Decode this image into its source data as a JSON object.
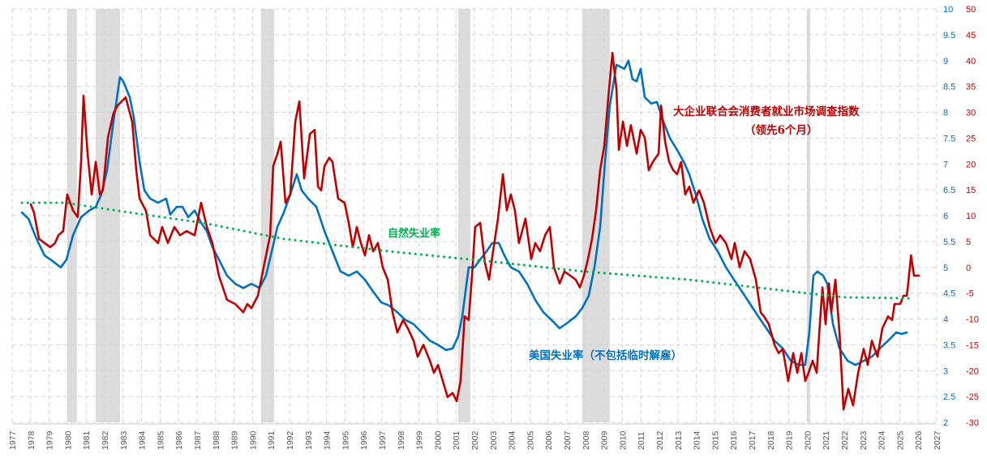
{
  "chart_data": {
    "type": "line",
    "title": "",
    "x_axis": {
      "range": [
        1977,
        2027
      ],
      "ticks": [
        1977,
        1978,
        1979,
        1980,
        1981,
        1982,
        1983,
        1984,
        1985,
        1986,
        1987,
        1988,
        1989,
        1990,
        1991,
        1992,
        1993,
        1994,
        1995,
        1996,
        1997,
        1998,
        1999,
        2000,
        2001,
        2002,
        2003,
        2004,
        2005,
        2006,
        2007,
        2008,
        2009,
        2010,
        2011,
        2012,
        2013,
        2014,
        2015,
        2016,
        2017,
        2018,
        2019,
        2020,
        2021,
        2022,
        2023,
        2024,
        2025,
        2026,
        2027
      ]
    },
    "y_left": {
      "range": [
        2,
        10
      ],
      "ticks": [
        "2",
        "2.5",
        "3",
        "3.5",
        "4",
        "4.5",
        "5",
        "5.5",
        "6",
        "6.5",
        "7",
        "7.5",
        "8",
        "8.5",
        "9",
        "9.5",
        "10"
      ],
      "color": "#0070c0"
    },
    "y_right": {
      "range": [
        -30,
        50
      ],
      "ticks": [
        "-30",
        "-25",
        "-20",
        "-15",
        "-10",
        "-5",
        "0",
        "5",
        "10",
        "15",
        "20",
        "25",
        "30",
        "35",
        "40",
        "45",
        "50"
      ],
      "color": "#c00000"
    },
    "grid": true,
    "recessions": [
      [
        1979.98,
        1980.5
      ],
      [
        1981.52,
        1982.83
      ],
      [
        1990.46,
        1991.17
      ],
      [
        2001.12,
        2001.78
      ],
      [
        2007.83,
        2009.32
      ],
      [
        2019.98,
        2020.16
      ]
    ],
    "annotations": {
      "natural_rate": "自然失业率",
      "unemployment": "美国失业率（不包括临时解雇）",
      "conference_board_line1": "大企业联合会消费者就业市场调查指数",
      "conference_board_line2": "（领先6个月）"
    },
    "series": [
      {
        "key": "unemployment",
        "axis": "left",
        "color": "#0070c0",
        "x": [
          1977.53,
          1977.88,
          1978.32,
          1978.75,
          1979.19,
          1979.63,
          1979.94,
          1980.29,
          1980.73,
          1981.17,
          1981.52,
          1981.82,
          1982.13,
          1982.48,
          1982.83,
          1983.01,
          1983.36,
          1983.58,
          1983.89,
          1984.15,
          1984.46,
          1984.89,
          1985.33,
          1985.55,
          1985.9,
          1986.21,
          1986.52,
          1986.87,
          1987.22,
          1987.53,
          1987.83,
          1988.18,
          1988.62,
          1989.06,
          1989.5,
          1989.94,
          1990.38,
          1990.73,
          1991.04,
          1991.34,
          1991.69,
          1992.04,
          1992.39,
          1992.66,
          1993.01,
          1993.45,
          1993.89,
          1994.32,
          1994.76,
          1995.2,
          1995.64,
          1996.08,
          1996.52,
          1996.96,
          1997.39,
          1997.83,
          1998.27,
          1998.71,
          1999.15,
          1999.59,
          2000.03,
          2000.46,
          2000.82,
          2001.12,
          2001.34,
          2001.69,
          2002.0,
          2002.31,
          2002.66,
          2002.96,
          2003.32,
          2003.62,
          2003.97,
          2004.41,
          2004.85,
          2005.29,
          2005.73,
          2006.17,
          2006.61,
          2007.04,
          2007.48,
          2007.83,
          2008.18,
          2008.49,
          2008.8,
          2009.06,
          2009.32,
          2009.68,
          2010.11,
          2010.33,
          2010.55,
          2010.77,
          2010.99,
          2011.21,
          2011.56,
          2011.87,
          2012.22,
          2012.57,
          2012.96,
          2013.32,
          2013.62,
          2013.97,
          2014.32,
          2014.72,
          2015.16,
          2015.6,
          2016.04,
          2016.47,
          2016.91,
          2017.35,
          2017.79,
          2018.23,
          2018.67,
          2019.11,
          2019.54,
          2019.89,
          2020.11,
          2020.33,
          2020.55,
          2020.86,
          2021.08,
          2021.39,
          2021.74,
          2022.18,
          2022.61,
          2023.05,
          2023.49,
          2023.93,
          2024.37,
          2024.81,
          2025.11,
          2025.38
        ],
        "y": [
          6.06,
          5.94,
          5.55,
          5.23,
          5.12,
          5.0,
          5.15,
          5.62,
          5.97,
          6.1,
          6.17,
          6.41,
          6.88,
          7.82,
          8.68,
          8.6,
          8.29,
          7.9,
          7.04,
          6.49,
          6.33,
          6.25,
          6.33,
          6.02,
          6.17,
          6.17,
          5.97,
          6.1,
          5.86,
          5.7,
          5.39,
          5.15,
          4.84,
          4.68,
          4.6,
          4.68,
          4.6,
          4.84,
          5.31,
          5.78,
          6.06,
          6.41,
          6.8,
          6.49,
          6.33,
          6.17,
          5.7,
          5.31,
          4.92,
          4.84,
          4.92,
          4.76,
          4.53,
          4.32,
          4.26,
          4.13,
          3.98,
          3.9,
          3.74,
          3.58,
          3.5,
          3.4,
          3.43,
          3.66,
          4.05,
          5.0,
          5.0,
          5.15,
          5.31,
          5.47,
          5.47,
          5.23,
          5.0,
          4.92,
          4.68,
          4.37,
          4.13,
          3.98,
          3.82,
          3.93,
          4.05,
          4.21,
          4.45,
          5.0,
          5.78,
          7.04,
          8.13,
          8.92,
          8.84,
          9.0,
          8.64,
          8.6,
          8.84,
          8.29,
          8.17,
          8.2,
          7.82,
          7.5,
          7.27,
          7.04,
          6.8,
          6.41,
          5.94,
          5.55,
          5.31,
          5.0,
          4.76,
          4.53,
          4.29,
          4.05,
          3.82,
          3.58,
          3.43,
          3.19,
          3.11,
          3.11,
          3.74,
          4.84,
          4.92,
          4.84,
          4.68,
          3.9,
          3.43,
          3.19,
          3.11,
          3.19,
          3.27,
          3.43,
          3.58,
          3.74,
          3.71,
          3.74
        ]
      },
      {
        "key": "conference_board",
        "axis": "right",
        "color": "#c00000",
        "x": [
          1978.01,
          1978.18,
          1978.45,
          1978.75,
          1979.06,
          1979.32,
          1979.5,
          1979.76,
          1979.98,
          1980.29,
          1980.55,
          1980.73,
          1980.86,
          1981.08,
          1981.3,
          1981.52,
          1981.74,
          1981.91,
          1982.18,
          1982.48,
          1982.7,
          1982.92,
          1983.14,
          1983.49,
          1983.71,
          1983.89,
          1984.24,
          1984.46,
          1984.89,
          1985.11,
          1985.42,
          1985.77,
          1986.08,
          1986.43,
          1986.87,
          1987.22,
          1987.53,
          1987.83,
          1988.18,
          1988.62,
          1989.06,
          1989.5,
          1989.72,
          1989.94,
          1990.29,
          1990.6,
          1990.95,
          1991.12,
          1991.34,
          1991.52,
          1991.78,
          1992.04,
          1992.31,
          1992.53,
          1992.79,
          1993.1,
          1993.36,
          1993.54,
          1993.71,
          1993.89,
          1994.15,
          1994.32,
          1994.63,
          1994.98,
          1995.2,
          1995.42,
          1995.64,
          1995.86,
          1996.08,
          1996.3,
          1996.52,
          1996.78,
          1997.04,
          1997.31,
          1997.57,
          1997.83,
          1998.14,
          1998.4,
          1998.71,
          1998.93,
          1999.24,
          1999.59,
          1999.81,
          2000.03,
          2000.29,
          2000.55,
          2000.82,
          2001.04,
          2001.25,
          2001.47,
          2001.69,
          2001.87,
          2002.04,
          2002.31,
          2002.57,
          2002.79,
          2003.01,
          2003.27,
          2003.54,
          2003.75,
          2003.97,
          2004.19,
          2004.41,
          2004.76,
          2005.07,
          2005.29,
          2005.55,
          2005.82,
          2006.08,
          2006.3,
          2006.61,
          2006.87,
          2007.18,
          2007.48,
          2007.7,
          2007.92,
          2008.14,
          2008.36,
          2008.58,
          2008.8,
          2009.02,
          2009.24,
          2009.46,
          2009.68,
          2009.81,
          2010.03,
          2010.25,
          2010.46,
          2010.77,
          2010.99,
          2011.21,
          2011.43,
          2011.65,
          2011.96,
          2012.09,
          2012.31,
          2012.53,
          2012.75,
          2012.96,
          2013.18,
          2013.4,
          2013.62,
          2013.84,
          2014.15,
          2014.41,
          2014.72,
          2015.03,
          2015.29,
          2015.6,
          2015.9,
          2016.08,
          2016.34,
          2016.61,
          2016.91,
          2017.22,
          2017.48,
          2017.66,
          2017.92,
          2018.23,
          2018.45,
          2018.67,
          2018.97,
          2019.24,
          2019.46,
          2019.68,
          2019.89,
          2020.07,
          2020.29,
          2020.51,
          2020.68,
          2020.82,
          2020.99,
          2021.17,
          2021.3,
          2021.52,
          2021.74,
          2021.96,
          2022.22,
          2022.48,
          2022.75,
          2023.05,
          2023.27,
          2023.49,
          2023.8,
          2024.06,
          2024.37,
          2024.59,
          2024.72,
          2025.03,
          2025.2,
          2025.38,
          2025.46,
          2025.61,
          2025.77,
          2026.04
        ],
        "y": [
          12.2,
          10.6,
          5.5,
          4.7,
          3.9,
          4.7,
          6.2,
          7.0,
          14.1,
          11.0,
          9.7,
          20.4,
          33.2,
          22.0,
          14.1,
          20.4,
          14.1,
          14.9,
          25.1,
          29.8,
          31.3,
          32.1,
          32.9,
          28.2,
          18.8,
          13.3,
          10.9,
          6.2,
          4.7,
          7.8,
          4.7,
          7.8,
          6.2,
          7.0,
          6.2,
          12.5,
          7.8,
          4.7,
          -1.6,
          -6.3,
          -7.1,
          -8.7,
          -7.1,
          -7.9,
          -5.5,
          0.0,
          6.2,
          19.6,
          21.9,
          24.3,
          12.5,
          14.1,
          28.2,
          32.1,
          17.2,
          25.8,
          26.6,
          15.6,
          14.9,
          19.6,
          21.2,
          20.4,
          13.3,
          12.5,
          8.6,
          3.9,
          7.8,
          4.7,
          2.3,
          6.2,
          3.1,
          4.7,
          0.0,
          -2.4,
          -8.7,
          -12.6,
          -10.2,
          -11.8,
          -14.2,
          -17.3,
          -15.0,
          -18.1,
          -20.4,
          -18.9,
          -22.0,
          -25.1,
          -24.3,
          -25.9,
          -22.0,
          -9.5,
          -10.2,
          -1.6,
          7.8,
          8.6,
          0.8,
          -2.4,
          3.1,
          9.4,
          18.0,
          11.0,
          14.1,
          11.0,
          4.7,
          9.4,
          1.6,
          4.7,
          3.1,
          6.2,
          7.8,
          0.0,
          -3.1,
          -0.8,
          -1.6,
          -2.4,
          -3.9,
          -1.6,
          1.6,
          5.5,
          11.0,
          18.8,
          23.5,
          32.9,
          41.5,
          34.5,
          22.7,
          28.2,
          23.5,
          27.5,
          22.0,
          26.6,
          25.1,
          18.8,
          20.4,
          22.0,
          31.3,
          24.3,
          20.4,
          18.8,
          18.0,
          20.4,
          14.1,
          15.6,
          12.5,
          14.9,
          12.5,
          7.8,
          4.7,
          6.2,
          4.7,
          1.6,
          4.7,
          0.0,
          3.1,
          1.6,
          -2.4,
          -8.7,
          -9.5,
          -11.0,
          -15.0,
          -16.6,
          -15.8,
          -22.0,
          -16.6,
          -20.4,
          -16.6,
          -22.0,
          -20.4,
          -18.1,
          -20.4,
          -11.0,
          -3.9,
          -11.0,
          -3.1,
          -8.7,
          -2.4,
          -12.6,
          -27.5,
          -23.5,
          -26.7,
          -20.4,
          -15.8,
          -18.9,
          -14.2,
          -17.3,
          -11.8,
          -9.5,
          -10.2,
          -7.1,
          -7.1,
          -5.5,
          -5.5,
          -3.1,
          2.3,
          -1.6,
          -1.6
        ]
      },
      {
        "key": "natural_rate",
        "axis": "left",
        "color": "#00b050",
        "style": "dotted",
        "x": [
          1977.53,
          1979.85,
          1983.36,
          1987.31,
          1991.69,
          1997.39,
          2002.66,
          2007.92,
          2013.62,
          2020.2,
          2021.96,
          2025.68
        ],
        "y": [
          6.25,
          6.25,
          6.06,
          5.86,
          5.55,
          5.31,
          5.12,
          4.92,
          4.76,
          4.49,
          4.42,
          4.4
        ]
      }
    ]
  }
}
